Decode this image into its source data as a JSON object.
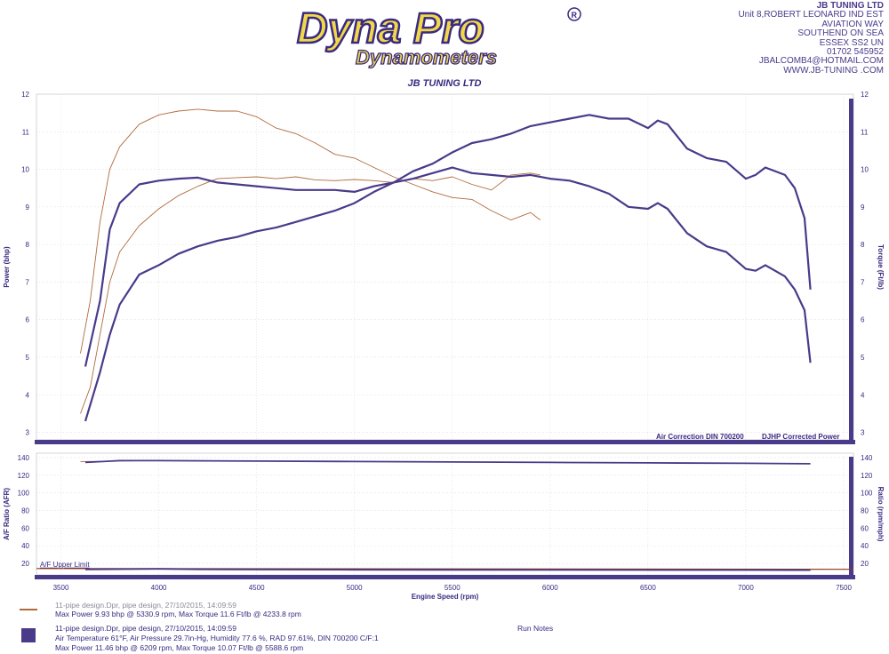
{
  "company": {
    "name": "JB TUNING LTD",
    "lines": [
      "Unit 8,ROBERT LEONARD IND EST",
      "AVIATION WAY",
      "SOUTHEND ON SEA",
      "ESSEX SS2 UN",
      "01702 545952",
      "JBALCOMB4@HOTMAIL.COM",
      "WWW.JB-TUNING .COM"
    ]
  },
  "logo": {
    "main": "Dyna Pro",
    "sub": "Dynamometers",
    "mark": "R"
  },
  "colors": {
    "series_a": "#b06a3c",
    "series_b": "#4a3a8a",
    "grid": "#d8d8d8",
    "axis": "#4a3a8a"
  },
  "chart_data": [
    {
      "type": "line",
      "title": "JB TUNING LTD",
      "xlabel": "",
      "ylabel": "Power (bhp)",
      "ylabel_right": "Torque (Ft/lb)",
      "xlim": [
        3375,
        7550
      ],
      "ylim": [
        2.8,
        12
      ],
      "yticks": [
        3,
        4,
        5,
        6,
        7,
        8,
        9,
        10,
        11,
        12
      ],
      "notes": [
        "Air Correction DIN 700200",
        "DJHP Corrected Power"
      ],
      "grid": true,
      "series": [
        {
          "name": "",
          "metric": "power",
          "run": 1,
          "x": [
            3600,
            3650,
            3700,
            3750,
            3800,
            3900,
            4000,
            4100,
            4200,
            4300,
            4400,
            4500,
            4600,
            4700,
            4800,
            4900,
            5000,
            5100,
            5200,
            5300,
            5400,
            5500,
            5600,
            5700,
            5800,
            5900,
            5950
          ],
          "y": [
            3.5,
            4.2,
            5.6,
            7.0,
            7.8,
            8.5,
            8.95,
            9.3,
            9.55,
            9.75,
            9.78,
            9.8,
            9.75,
            9.8,
            9.72,
            9.7,
            9.73,
            9.7,
            9.65,
            9.75,
            9.7,
            9.8,
            9.6,
            9.45,
            9.85,
            9.9,
            9.85
          ]
        },
        {
          "name": "",
          "metric": "torque",
          "run": 1,
          "x": [
            3600,
            3650,
            3700,
            3750,
            3800,
            3900,
            4000,
            4100,
            4200,
            4300,
            4400,
            4500,
            4600,
            4700,
            4800,
            4900,
            5000,
            5100,
            5200,
            5300,
            5400,
            5500,
            5600,
            5700,
            5800,
            5900,
            5950
          ],
          "y": [
            5.1,
            6.5,
            8.6,
            10.0,
            10.6,
            11.2,
            11.45,
            11.55,
            11.6,
            11.55,
            11.55,
            11.4,
            11.1,
            10.95,
            10.7,
            10.4,
            10.3,
            10.05,
            9.8,
            9.6,
            9.4,
            9.25,
            9.2,
            8.9,
            8.65,
            8.85,
            8.65
          ]
        },
        {
          "name": "11-pipe design.Dpr",
          "metric": "power",
          "run": 2,
          "x": [
            3625,
            3700,
            3750,
            3800,
            3900,
            4000,
            4100,
            4200,
            4300,
            4400,
            4500,
            4600,
            4700,
            4800,
            4900,
            5000,
            5100,
            5200,
            5300,
            5400,
            5500,
            5600,
            5700,
            5800,
            5900,
            6000,
            6100,
            6200,
            6300,
            6400,
            6500,
            6550,
            6600,
            6700,
            6800,
            6900,
            7000,
            7050,
            7100,
            7200,
            7250,
            7300,
            7330
          ],
          "y": [
            3.3,
            4.6,
            5.6,
            6.4,
            7.2,
            7.45,
            7.75,
            7.95,
            8.1,
            8.2,
            8.35,
            8.45,
            8.6,
            8.75,
            8.9,
            9.1,
            9.4,
            9.65,
            9.95,
            10.15,
            10.45,
            10.7,
            10.8,
            10.95,
            11.15,
            11.25,
            11.35,
            11.45,
            11.35,
            11.35,
            11.1,
            11.3,
            11.2,
            10.55,
            10.3,
            10.2,
            9.75,
            9.85,
            10.05,
            9.85,
            9.5,
            8.7,
            6.8
          ]
        },
        {
          "name": "11-pipe design.Dpr",
          "metric": "torque",
          "run": 2,
          "x": [
            3625,
            3700,
            3750,
            3800,
            3900,
            4000,
            4100,
            4200,
            4300,
            4400,
            4500,
            4600,
            4700,
            4800,
            4900,
            5000,
            5100,
            5200,
            5300,
            5400,
            5500,
            5600,
            5700,
            5800,
            5900,
            6000,
            6100,
            6200,
            6300,
            6400,
            6500,
            6550,
            6600,
            6700,
            6800,
            6900,
            7000,
            7050,
            7100,
            7200,
            7250,
            7300,
            7330
          ],
          "y": [
            4.75,
            6.5,
            8.4,
            9.1,
            9.6,
            9.7,
            9.75,
            9.78,
            9.65,
            9.6,
            9.55,
            9.5,
            9.45,
            9.45,
            9.45,
            9.4,
            9.55,
            9.65,
            9.75,
            9.9,
            10.05,
            9.9,
            9.85,
            9.8,
            9.85,
            9.75,
            9.7,
            9.55,
            9.35,
            9.0,
            8.95,
            9.1,
            8.95,
            8.3,
            7.95,
            7.8,
            7.35,
            7.3,
            7.45,
            7.15,
            6.8,
            6.25,
            4.85
          ]
        }
      ]
    },
    {
      "type": "line",
      "xlabel": "Engine Speed (rpm)",
      "ylabel": "A/F Ratio (AFR)",
      "ylabel_right": "Ratio (rpm/mph)",
      "xlim": [
        3375,
        7550
      ],
      "xticks": [
        3500,
        4000,
        4500,
        5000,
        5500,
        6000,
        6500,
        7000,
        7500
      ],
      "ylim": [
        7,
        145
      ],
      "yticks": [
        20,
        40,
        60,
        80,
        100,
        120,
        140
      ],
      "annotations": [
        "A/F Upper Limit"
      ],
      "series": [
        {
          "name": "",
          "metric": "ratio",
          "run": 1,
          "x": [
            3600,
            3950
          ],
          "y": [
            135.5,
            136.5
          ]
        },
        {
          "name": "11-pipe design.Dpr",
          "metric": "ratio",
          "run": 2,
          "x": [
            3625,
            3800,
            4000,
            4500,
            5000,
            5500,
            6000,
            6500,
            7000,
            7330
          ],
          "y": [
            134.5,
            136.5,
            136.5,
            136,
            135.5,
            135,
            134.5,
            134,
            133.5,
            133
          ]
        },
        {
          "name": "A/F Upper Limit",
          "metric": "afr_limit",
          "x": [
            3375,
            7550
          ],
          "y": [
            14.3,
            13.3
          ]
        },
        {
          "name": "",
          "metric": "afr",
          "run": 2,
          "x": [
            3625,
            4000,
            4200,
            5000,
            6000,
            7000,
            7330
          ],
          "y": [
            13.2,
            13.8,
            13.3,
            12.8,
            12.6,
            12.5,
            12.4
          ]
        }
      ]
    }
  ],
  "legend": {
    "run1_header": "11-pipe design.Dpr,   pipe design,   27/10/2015,   14:09:59",
    "run1_summary": "Max Power 9.93 bhp @ 5330.9 rpm, Max Torque 11.6 Ft/lb @ 4233.8 rpm",
    "run2_header": "11-pipe design.Dpr,   pipe design,   27/10/2015,   14:09:59",
    "run2_conditions": "Air Temperature 61°F, Air Pressure 29.7in-Hg, Humidity 77.6 %, RAD 97.61%,   DIN 700200  C/F:1",
    "run2_summary": "Max Power 11.46 bhp @ 6209 rpm, Max Torque 10.07 Ft/lb @ 5588.6 rpm",
    "run_notes": "Run Notes"
  }
}
